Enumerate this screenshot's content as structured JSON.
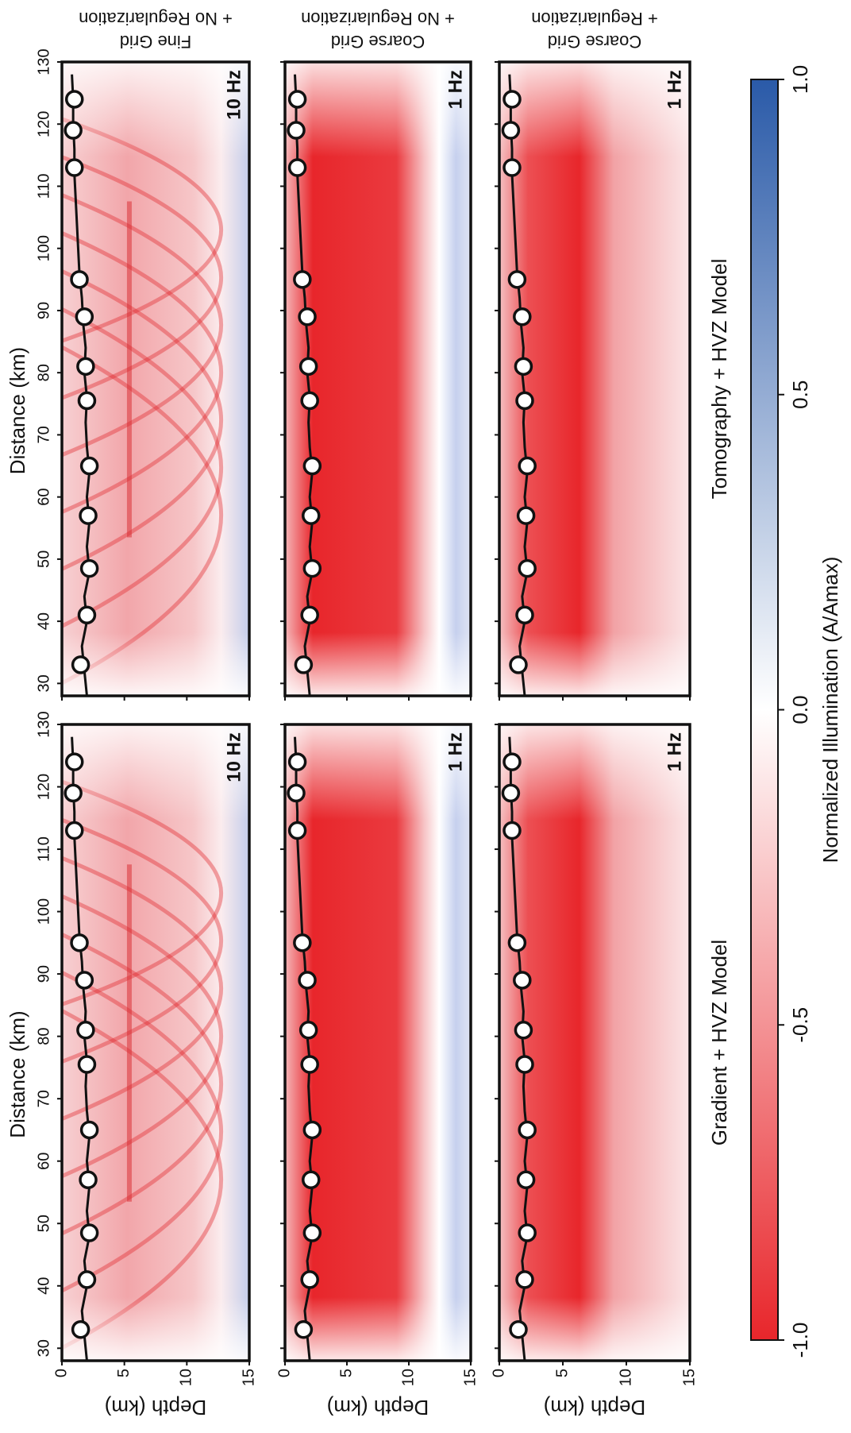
{
  "chart_data": {
    "type": "heatmap",
    "columns": [
      {
        "title": "Gradient + HVZ Model"
      },
      {
        "title": "Tomography + HVZ Model"
      }
    ],
    "rows": [
      {
        "label": "Fine Grid",
        "sublabel": "+ No Regularization",
        "frequency": "10 Hz"
      },
      {
        "label": "Coarse Grid",
        "sublabel": "+ No Regularization",
        "frequency": "1 Hz"
      },
      {
        "label": "Coarse Grid",
        "sublabel": "+ Regularization",
        "frequency": "1 Hz"
      }
    ],
    "x_label": "Distance (km)",
    "y_label": "Depth (km)",
    "xlim": [
      28,
      130
    ],
    "xticks": [
      30,
      40,
      50,
      60,
      70,
      80,
      90,
      100,
      110,
      120,
      130
    ],
    "ylim": [
      0,
      15
    ],
    "yticks": [
      0,
      5,
      10,
      15
    ],
    "stations": {
      "distance": [
        33,
        41,
        48.5,
        57,
        65,
        75.5,
        81,
        89,
        95,
        113,
        119,
        124
      ],
      "depth": [
        1.5,
        2.0,
        2.2,
        2.1,
        2.2,
        2.0,
        1.9,
        1.8,
        1.4,
        1.0,
        0.9,
        1.0
      ]
    },
    "topography": {
      "distance": [
        28,
        32,
        36,
        40,
        44,
        48,
        52,
        56,
        60,
        64,
        68,
        72,
        76,
        80,
        84,
        88,
        92,
        96,
        100,
        104,
        108,
        112,
        116,
        120,
        124,
        128
      ],
      "depth": [
        2.0,
        1.8,
        1.6,
        2.0,
        1.8,
        2.2,
        2.0,
        2.2,
        2.0,
        2.2,
        2.0,
        1.9,
        2.0,
        1.8,
        1.9,
        1.7,
        1.6,
        1.4,
        1.3,
        1.2,
        1.1,
        1.0,
        1.0,
        0.9,
        0.9,
        0.8
      ]
    },
    "colorbar": {
      "label": "Normalized Illumination (A/Amax)",
      "clim": [
        -1,
        1
      ],
      "colors": [
        "#e8262b",
        "#ffffff",
        "#2a5aa8"
      ],
      "ticks": [
        {
          "value": -1,
          "label": "-1.0"
        },
        -0.5,
        {
          "value": 0,
          "label": "0.0"
        },
        0.5,
        {
          "value": 1,
          "label": "1.0"
        }
      ]
    }
  }
}
